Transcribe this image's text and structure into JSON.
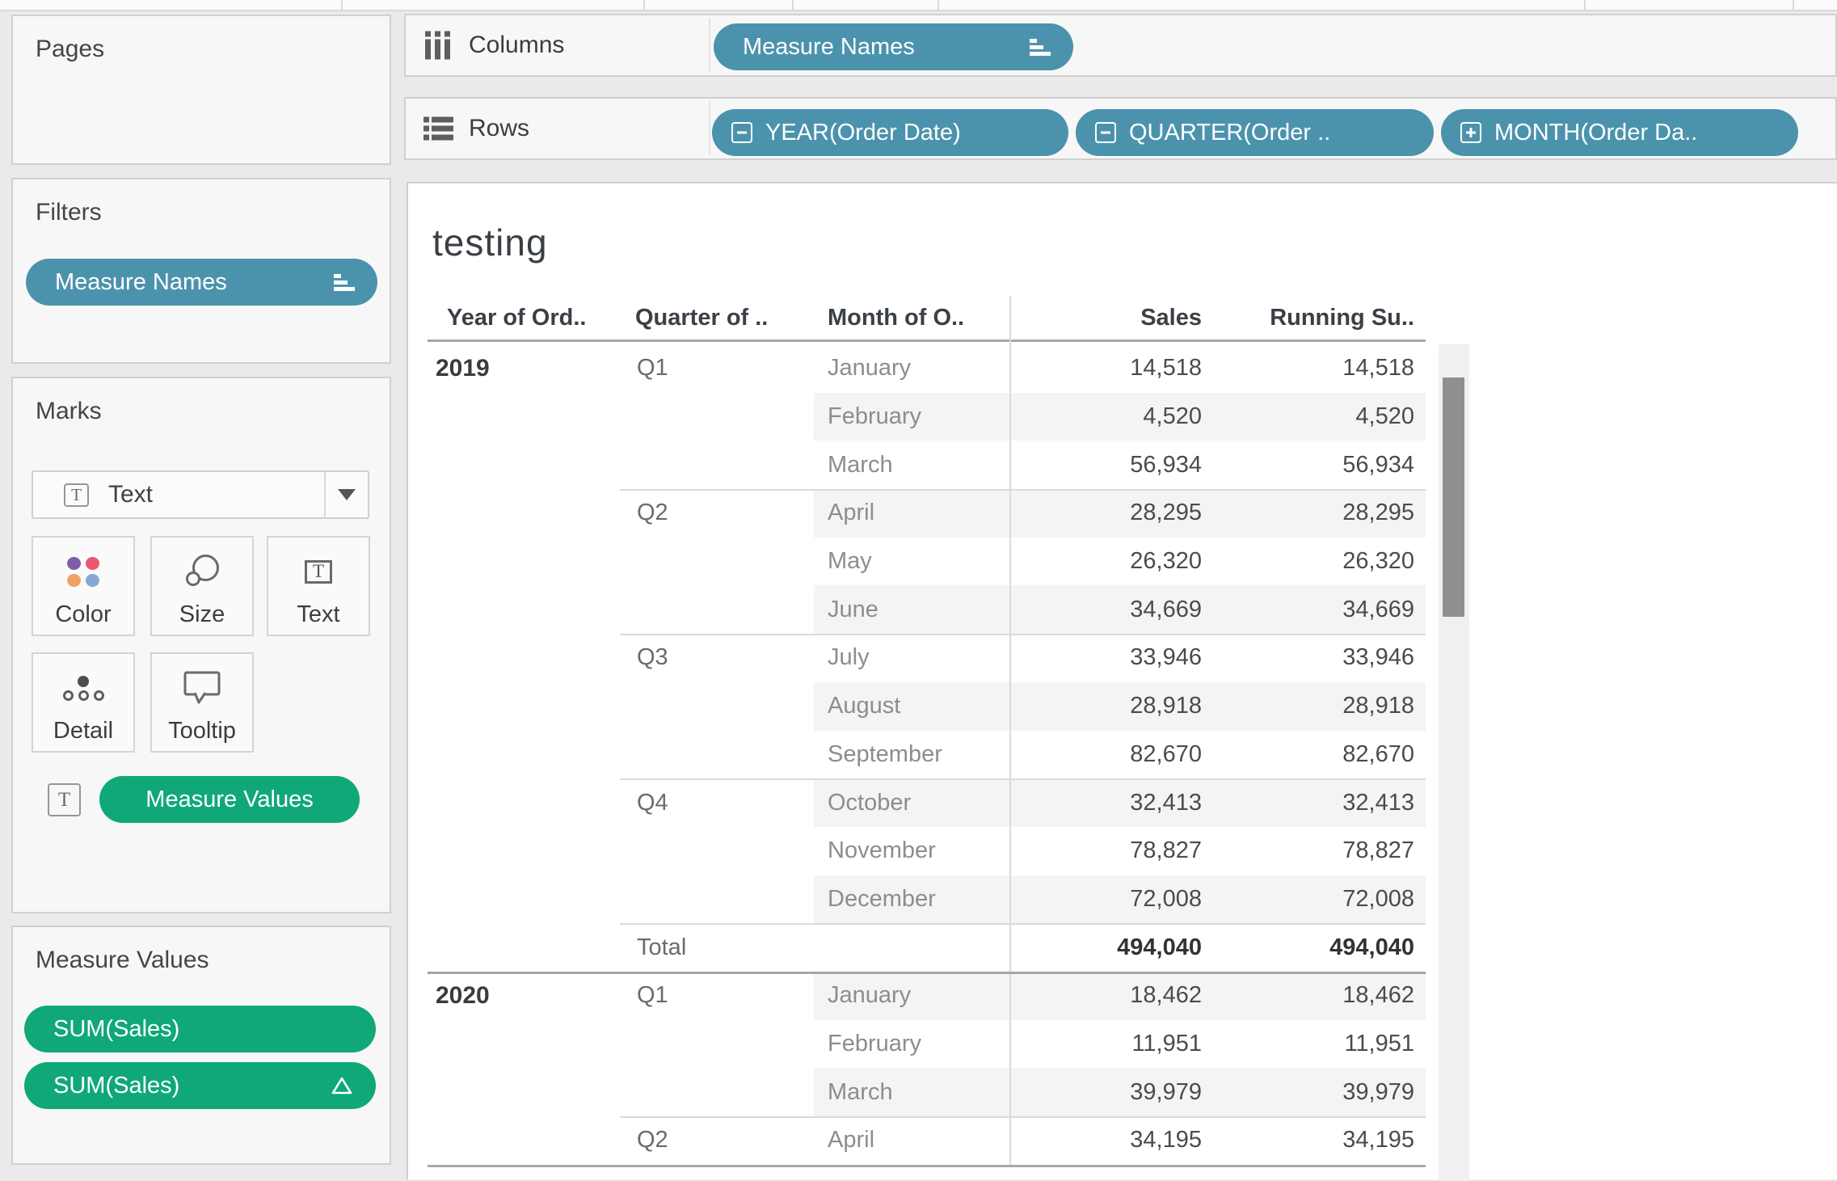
{
  "toolbar": {
    "note": ""
  },
  "pages": {
    "title": "Pages"
  },
  "filters": {
    "title": "Filters",
    "pills": [
      {
        "label": "Measure Names",
        "icon": "sort-icon"
      }
    ]
  },
  "marks": {
    "title": "Marks",
    "mark_type": {
      "label": "Text",
      "icon": "text-icon"
    },
    "buttons": [
      {
        "label": "Color",
        "icon": "color-dots-icon"
      },
      {
        "label": "Size",
        "icon": "size-circles-icon"
      },
      {
        "label": "Text",
        "icon": "text-box-icon"
      },
      {
        "label": "Detail",
        "icon": "detail-dots-icon"
      },
      {
        "label": "Tooltip",
        "icon": "tooltip-bubble-icon"
      }
    ],
    "encoding": {
      "icon": "text-box-icon",
      "pill": "Measure Values"
    }
  },
  "measure_values": {
    "title": "Measure Values",
    "pills": [
      {
        "label": "SUM(Sales)"
      },
      {
        "label": "SUM(Sales)",
        "icon": "delta-icon"
      }
    ]
  },
  "shelves": {
    "columns": {
      "label": "Columns",
      "pills": [
        {
          "label": "Measure Names",
          "icon": "sort-icon"
        }
      ]
    },
    "rows": {
      "label": "Rows",
      "pills": [
        {
          "label": "YEAR(Order Date)",
          "icon": "collapse-minus-icon"
        },
        {
          "label": "QUARTER(Order ..",
          "icon": "collapse-minus-icon"
        },
        {
          "label": "MONTH(Order Da..",
          "icon": "expand-plus-icon"
        }
      ]
    }
  },
  "sheet": {
    "title": "testing"
  },
  "table": {
    "headers": [
      {
        "label": "Year of Ord.."
      },
      {
        "label": "Quarter of .."
      },
      {
        "label": "Month of O.."
      },
      {
        "label": "Sales"
      },
      {
        "label": "Running Su.."
      }
    ],
    "rows": [
      {
        "year": "2019",
        "quarter": "Q1",
        "month": "January",
        "sales": "14,518",
        "running": "14,518",
        "band": false
      },
      {
        "month": "February",
        "sales": "4,520",
        "running": "4,520",
        "band": true
      },
      {
        "month": "March",
        "sales": "56,934",
        "running": "56,934",
        "band": false
      },
      {
        "quarter": "Q2",
        "month": "April",
        "sales": "28,295",
        "running": "28,295",
        "band": true,
        "rule": "quarter"
      },
      {
        "month": "May",
        "sales": "26,320",
        "running": "26,320",
        "band": false
      },
      {
        "month": "June",
        "sales": "34,669",
        "running": "34,669",
        "band": true
      },
      {
        "quarter": "Q3",
        "month": "July",
        "sales": "33,946",
        "running": "33,946",
        "band": false,
        "rule": "quarter"
      },
      {
        "month": "August",
        "sales": "28,918",
        "running": "28,918",
        "band": true
      },
      {
        "month": "September",
        "sales": "82,670",
        "running": "82,670",
        "band": false
      },
      {
        "quarter": "Q4",
        "month": "October",
        "sales": "32,413",
        "running": "32,413",
        "band": true,
        "rule": "quarter"
      },
      {
        "month": "November",
        "sales": "78,827",
        "running": "78,827",
        "band": false
      },
      {
        "month": "December",
        "sales": "72,008",
        "running": "72,008",
        "band": true
      },
      {
        "quarter": "Total",
        "sales": "494,040",
        "running": "494,040",
        "band": false,
        "total": true,
        "rule": "quarter"
      },
      {
        "year": "2020",
        "quarter": "Q1",
        "month": "January",
        "sales": "18,462",
        "running": "18,462",
        "band": true,
        "rule": "year"
      },
      {
        "month": "February",
        "sales": "11,951",
        "running": "11,951",
        "band": false
      },
      {
        "month": "March",
        "sales": "39,979",
        "running": "39,979",
        "band": true
      },
      {
        "quarter": "Q2",
        "month": "April",
        "sales": "34,195",
        "running": "34,195",
        "band": false,
        "rule": "quarter"
      }
    ]
  },
  "colors": {
    "pill_blue": "#4B93AD",
    "pill_green": "#10A878",
    "banding": "#f4f4f4",
    "panel_bg": "#f7f7f7",
    "dot_purple": "#7E5FA4",
    "dot_red": "#E8586E",
    "dot_orange": "#F2A269",
    "dot_blue": "#86A8D2"
  }
}
